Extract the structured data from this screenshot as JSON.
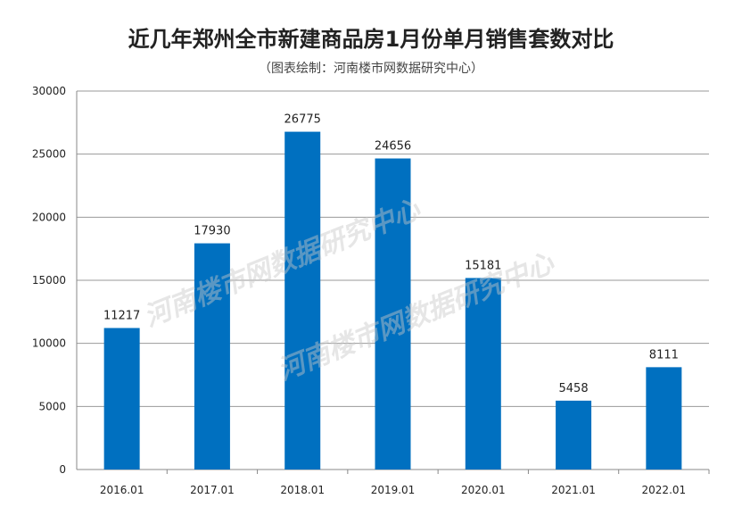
{
  "chart_data": {
    "type": "bar",
    "title": "近几年郑州全市新建商品房1月份单月销售套数对比",
    "subtitle": "（图表绘制：河南楼市网数据研究中心）",
    "categories": [
      "2016.01",
      "2017.01",
      "2018.01",
      "2019.01",
      "2020.01",
      "2021.01",
      "2022.01"
    ],
    "values": [
      11217,
      17930,
      26775,
      24656,
      15181,
      5458,
      8111
    ],
    "xlabel": "",
    "ylabel": "",
    "ylim": [
      0,
      30000
    ],
    "yticks": [
      0,
      5000,
      10000,
      15000,
      20000,
      25000,
      30000
    ],
    "grid": true,
    "bar_color": "#0070c0",
    "watermark": "河南楼市网数据研究中心"
  }
}
